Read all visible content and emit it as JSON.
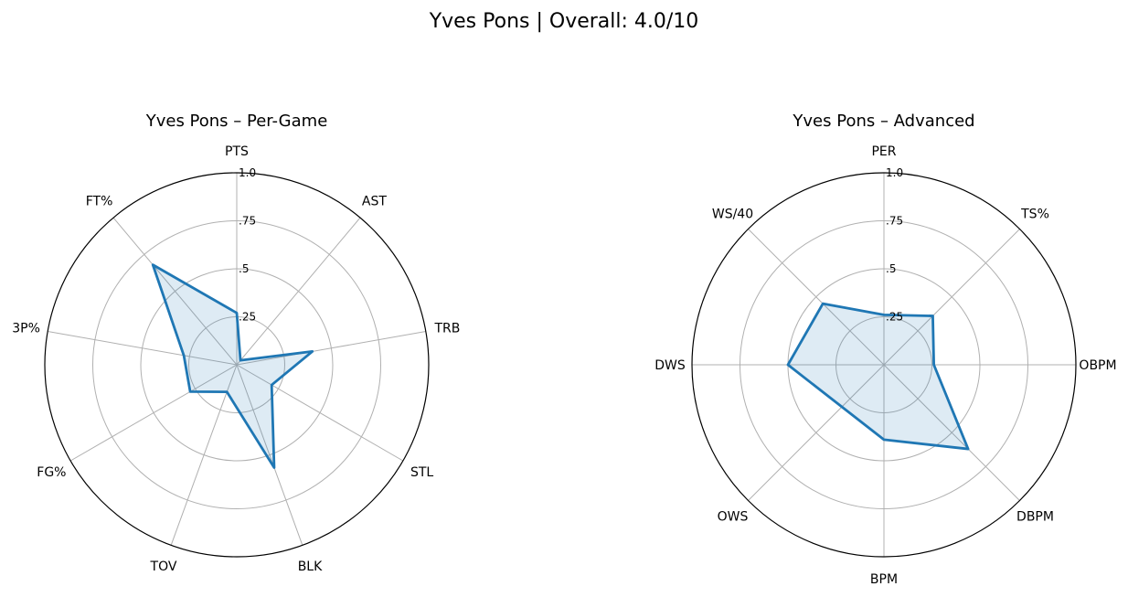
{
  "figure": {
    "title": "Yves Pons | Overall: 4.0/10"
  },
  "chart_data": [
    {
      "type": "radar",
      "title": "Yves Pons – Per-Game",
      "axes": [
        "PTS",
        "AST",
        "TRB",
        "STL",
        "BLK",
        "TOV",
        "FG%",
        "3P%",
        "FT%"
      ],
      "values": [
        0.27,
        0.03,
        0.4,
        0.21,
        0.57,
        0.15,
        0.28,
        0.28,
        0.68
      ],
      "rlim": [
        0,
        1
      ],
      "rticks": [
        0.25,
        0.5,
        0.75,
        1.0
      ],
      "rtick_labels": [
        ".25",
        ".5",
        ".75",
        "1.0"
      ],
      "grid": true,
      "line_color": "#1f77b4",
      "fill_color": "#1f77b4"
    },
    {
      "type": "radar",
      "title": "Yves Pons – Advanced",
      "axes": [
        "PER",
        "TS%",
        "OBPM",
        "DBPM",
        "BPM",
        "OWS",
        "DWS",
        "WS/40"
      ],
      "values": [
        0.26,
        0.36,
        0.26,
        0.62,
        0.39,
        0.31,
        0.5,
        0.45
      ],
      "rlim": [
        0,
        1
      ],
      "rticks": [
        0.25,
        0.5,
        0.75,
        1.0
      ],
      "rtick_labels": [
        ".25",
        ".5",
        ".75",
        "1.0"
      ],
      "grid": true,
      "line_color": "#1f77b4",
      "fill_color": "#1f77b4"
    }
  ]
}
